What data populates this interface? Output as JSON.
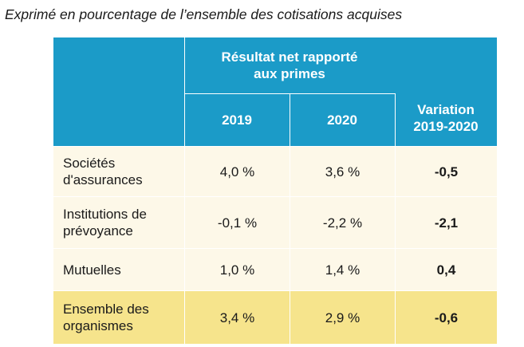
{
  "caption": "Exprimé en pourcentage de l’ensemble des cotisations acquises",
  "header": {
    "group_line1": "Résultat net rapporté",
    "group_line2": "aux primes",
    "col_2019": "2019",
    "col_2020": "2020",
    "variation_line1": "Variation",
    "variation_line2": "2019-2020"
  },
  "rows": [
    {
      "label_line1": "Sociétés",
      "label_line2": "d'assurances",
      "v2019": "4,0 %",
      "v2020": "3,6 %",
      "variation": "-0,5"
    },
    {
      "label_line1": "Institutions de",
      "label_line2": "prévoyance",
      "v2019": "-0,1 %",
      "v2020": "-2,2 %",
      "variation": "-2,1"
    },
    {
      "label_line1": "Mutuelles",
      "label_line2": "",
      "v2019": "1,0 %",
      "v2020": "1,4 %",
      "variation": "0,4"
    },
    {
      "label_line1": "Ensemble des",
      "label_line2": "organismes",
      "v2019": "3,4 %",
      "v2020": "2,9 %",
      "variation": "-0,6"
    }
  ],
  "colors": {
    "header_blue": "#1b9bc8",
    "row_light": "#fdf8e8",
    "row_total": "#f6e48c"
  }
}
